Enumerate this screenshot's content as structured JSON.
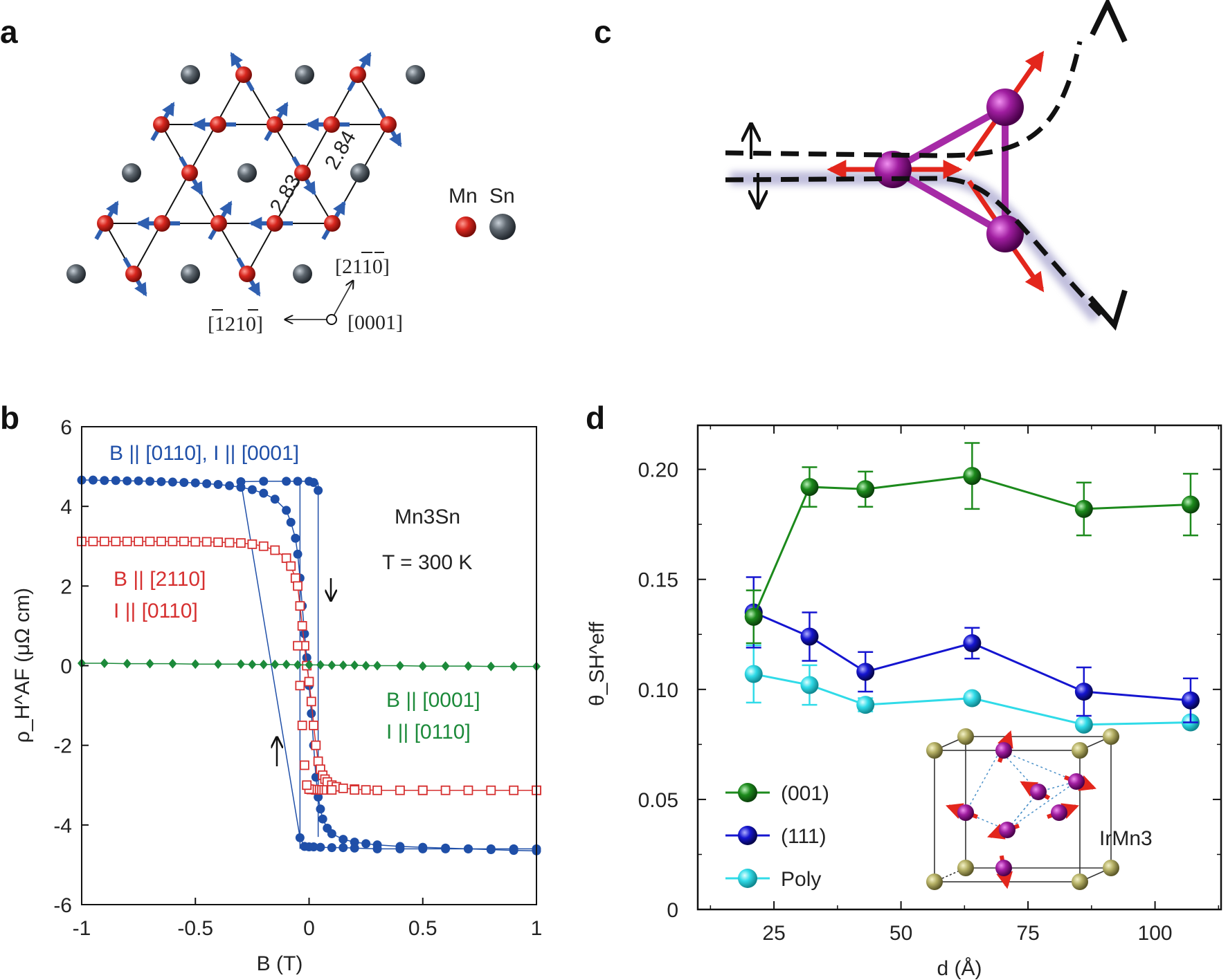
{
  "panel_labels": {
    "a": "a",
    "b": "b",
    "c": "c",
    "d": "d"
  },
  "panel_a": {
    "legend_mn": "Mn",
    "legend_sn": "Sn",
    "bond_1": "2.83",
    "bond_2": "2.84",
    "dir_1": "[2110]",
    "dir_2": "[1210]",
    "dir_3": "[0001]",
    "colors": {
      "mn": "#d8271f",
      "sn": "#5f6870",
      "spin": "#2f5fb0"
    }
  },
  "panel_c": {
    "colors": {
      "atom": "#a01ea0",
      "spin": "#e3261c",
      "path": "#111111"
    }
  },
  "chart_data": [
    {
      "panel": "b",
      "type": "line",
      "xlabel": "B (T)",
      "ylabel": "ρ_H^AF (μΩ cm)",
      "xlim": [
        -1,
        1
      ],
      "ylim": [
        -6,
        6
      ],
      "xticks": [
        "-1",
        "-0.5",
        "0",
        "0.5",
        "1"
      ],
      "yticks": [
        "-6",
        "-4",
        "-2",
        "0",
        "2",
        "4",
        "6"
      ],
      "annotations": {
        "material": "Mn3Sn",
        "temperature": "T = 300 K",
        "blue": "B || [0110], I || [0001]",
        "red_1": "B || [2110]",
        "red_2": "I || [0110]",
        "green_1": "B || [0001]",
        "green_2": "I || [0110]"
      },
      "series": [
        {
          "color": "#1f4fa8",
          "marker": "circle",
          "x": [
            -1,
            -0.95,
            -0.9,
            -0.85,
            -0.8,
            -0.75,
            -0.7,
            -0.65,
            -0.6,
            -0.55,
            -0.5,
            -0.45,
            -0.4,
            -0.35,
            -0.3,
            -0.25,
            -0.2,
            -0.15,
            -0.1,
            -0.08,
            -0.06,
            -0.05,
            -0.04,
            -0.03,
            -0.02,
            -0.01,
            0.0,
            0.01,
            0.02,
            0.03,
            0.04,
            0.05,
            0.06,
            0.08,
            0.1,
            0.15,
            0.2,
            0.25,
            0.3,
            0.4,
            0.5,
            0.6,
            0.7,
            0.8,
            0.9,
            1.0
          ],
          "y": [
            4.66,
            4.66,
            4.65,
            4.65,
            4.64,
            4.64,
            4.63,
            4.62,
            4.61,
            4.6,
            4.59,
            4.57,
            4.55,
            4.52,
            4.48,
            4.42,
            4.33,
            4.18,
            3.9,
            3.6,
            3.2,
            2.8,
            2.2,
            1.5,
            0.8,
            0.2,
            -0.5,
            -1.2,
            -2.0,
            -2.8,
            -3.3,
            -3.6,
            -3.85,
            -4.08,
            -4.22,
            -4.36,
            -4.43,
            -4.47,
            -4.5,
            -4.54,
            -4.56,
            -4.58,
            -4.6,
            -4.62,
            -4.64,
            -4.65
          ]
        },
        {
          "color": "#1f4fa8",
          "marker": "circle",
          "x": [
            1,
            0.9,
            0.8,
            0.7,
            0.6,
            0.5,
            0.4,
            0.3,
            0.2,
            0.15,
            0.1,
            0.05,
            0.02,
            0.0,
            -0.02,
            -0.04,
            -0.3,
            -0.2,
            -0.1,
            -0.05,
            0.0,
            0.02,
            0.04
          ],
          "y": [
            -4.6,
            -4.6,
            -4.6,
            -4.6,
            -4.6,
            -4.6,
            -4.6,
            -4.6,
            -4.58,
            -4.57,
            -4.57,
            -4.56,
            -4.55,
            -4.55,
            -4.54,
            -4.32,
            4.62,
            4.63,
            4.63,
            4.63,
            4.63,
            4.6,
            4.4
          ]
        },
        {
          "color": "#d63030",
          "marker": "open-square",
          "x": [
            -1,
            -0.95,
            -0.9,
            -0.85,
            -0.8,
            -0.75,
            -0.7,
            -0.65,
            -0.6,
            -0.55,
            -0.5,
            -0.45,
            -0.4,
            -0.35,
            -0.3,
            -0.25,
            -0.2,
            -0.15,
            -0.1,
            -0.08,
            -0.06,
            -0.05,
            -0.04,
            -0.03,
            -0.02,
            -0.01,
            0.0,
            0.01,
            0.02,
            0.03,
            0.04,
            0.05,
            0.06,
            0.07,
            0.08,
            0.1,
            0.12,
            0.15,
            0.2,
            0.25,
            0.3,
            0.4,
            0.5,
            0.6,
            0.7,
            0.8,
            0.9,
            1.0
          ],
          "y": [
            3.12,
            3.12,
            3.12,
            3.12,
            3.12,
            3.12,
            3.12,
            3.12,
            3.12,
            3.12,
            3.11,
            3.11,
            3.1,
            3.09,
            3.08,
            3.05,
            3.0,
            2.9,
            2.7,
            2.5,
            2.2,
            2.0,
            1.5,
            1.0,
            0.5,
            0.0,
            -0.4,
            -0.9,
            -1.5,
            -2.0,
            -2.4,
            -2.6,
            -2.75,
            -2.85,
            -2.92,
            -3.0,
            -3.04,
            -3.08,
            -3.1,
            -3.12,
            -3.13,
            -3.13,
            -3.13,
            -3.13,
            -3.13,
            -3.13,
            -3.13,
            -3.13
          ]
        },
        {
          "color": "#1c8a3a",
          "marker": "diamond",
          "x": [
            -1,
            -0.9,
            -0.8,
            -0.7,
            -0.6,
            -0.5,
            -0.4,
            -0.3,
            -0.25,
            -0.2,
            -0.15,
            -0.1,
            -0.05,
            0.0,
            0.05,
            0.1,
            0.15,
            0.2,
            0.25,
            0.3,
            0.4,
            0.5,
            0.6,
            0.7,
            0.8,
            0.9,
            1.0
          ],
          "y": [
            0.06,
            0.06,
            0.05,
            0.05,
            0.05,
            0.04,
            0.04,
            0.04,
            0.03,
            0.03,
            0.03,
            0.03,
            0.02,
            0.02,
            0.02,
            0.01,
            0.01,
            0.01,
            0.0,
            0.0,
            0.0,
            -0.01,
            -0.01,
            -0.01,
            -0.02,
            -0.02,
            -0.02
          ]
        }
      ]
    },
    {
      "panel": "d",
      "type": "line",
      "xlabel": "d (Å)",
      "ylabel": "θ_SH^eff",
      "xlim": [
        10,
        113
      ],
      "ylim": [
        0,
        0.22
      ],
      "xticks": [
        "25",
        "50",
        "75",
        "100"
      ],
      "yticks": [
        "0",
        "0.05",
        "0.10",
        "0.15",
        "0.20"
      ],
      "inset_label": "IrMn3",
      "series": [
        {
          "name": "(001)",
          "color": "#1c8a1c",
          "x": [
            21,
            32,
            43,
            64,
            86,
            107
          ],
          "y": [
            0.133,
            0.192,
            0.191,
            0.197,
            0.182,
            0.184
          ],
          "err": [
            0.012,
            0.009,
            0.008,
            0.015,
            0.012,
            0.014
          ]
        },
        {
          "name": "(111)",
          "color": "#1515d0",
          "x": [
            21,
            32,
            43,
            64,
            86,
            107
          ],
          "y": [
            0.135,
            0.124,
            0.108,
            0.121,
            0.099,
            0.095
          ],
          "err": [
            0.016,
            0.011,
            0.009,
            0.007,
            0.011,
            0.01
          ]
        },
        {
          "name": "Poly",
          "color": "#30dbe8",
          "x": [
            21,
            32,
            43,
            64,
            86,
            107
          ],
          "y": [
            0.107,
            0.102,
            0.093,
            0.096,
            0.084,
            0.085
          ],
          "err": [
            0.013,
            0.009,
            0.003,
            0.002,
            0.002,
            0.002
          ]
        }
      ]
    }
  ]
}
